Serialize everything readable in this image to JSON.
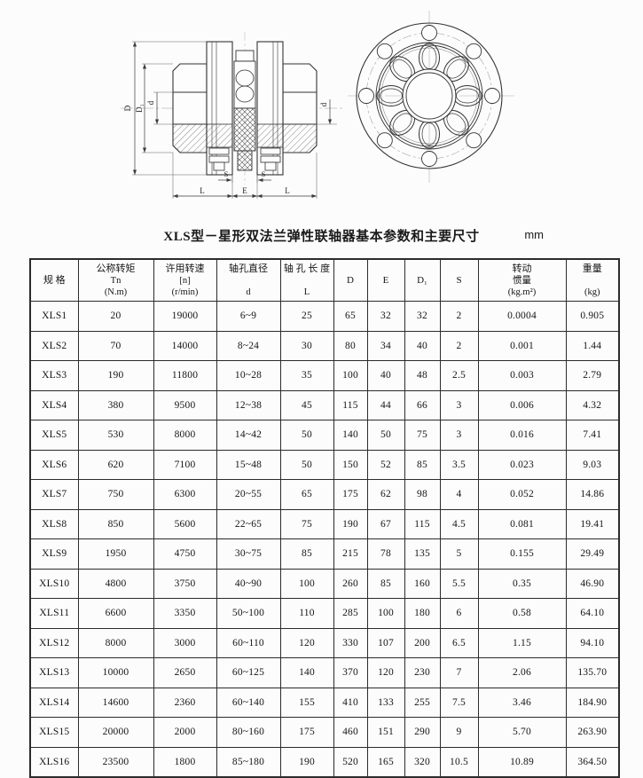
{
  "title": "XLS型－星形双法兰弹性联轴器基本参数和主要尺寸",
  "unit": "mm",
  "drawing": {
    "section_view": {
      "dims": {
        "D": "D",
        "D1": "D₁",
        "d_left": "d",
        "d_right": "d",
        "s_left": "S",
        "s_right": "S",
        "l_left": "L",
        "e": "E",
        "l_right": "L"
      }
    }
  },
  "table": {
    "columns": [
      {
        "key": "spec",
        "lines": [
          "规  格"
        ]
      },
      {
        "key": "torque",
        "lines": [
          "公称转矩",
          "Tn",
          "(N.m)"
        ]
      },
      {
        "key": "speed",
        "lines": [
          "许用转速",
          "[n]",
          "(r/min)"
        ]
      },
      {
        "key": "bore_d",
        "lines": [
          "轴孔直径",
          "",
          "d"
        ]
      },
      {
        "key": "bore_l",
        "lines": [
          "轴 孔 长 度",
          "",
          "L"
        ]
      },
      {
        "key": "D",
        "lines": [
          "D"
        ]
      },
      {
        "key": "E",
        "lines": [
          "E"
        ]
      },
      {
        "key": "D1",
        "lines": [
          "D₁"
        ]
      },
      {
        "key": "S",
        "lines": [
          "S"
        ]
      },
      {
        "key": "inertia",
        "lines": [
          "转动",
          "惯量",
          "(kg.m²)"
        ]
      },
      {
        "key": "weight",
        "lines": [
          "重量",
          "",
          "(kg)"
        ]
      }
    ],
    "rows": [
      [
        "XLS1",
        "20",
        "19000",
        "6~9",
        "25",
        "65",
        "32",
        "32",
        "2",
        "0.0004",
        "0.905"
      ],
      [
        "XLS2",
        "70",
        "14000",
        "8~24",
        "30",
        "80",
        "34",
        "40",
        "2",
        "0.001",
        "1.44"
      ],
      [
        "XLS3",
        "190",
        "11800",
        "10~28",
        "35",
        "100",
        "40",
        "48",
        "2.5",
        "0.003",
        "2.79"
      ],
      [
        "XLS4",
        "380",
        "9500",
        "12~38",
        "45",
        "115",
        "44",
        "66",
        "3",
        "0.006",
        "4.32"
      ],
      [
        "XLS5",
        "530",
        "8000",
        "14~42",
        "50",
        "140",
        "50",
        "75",
        "3",
        "0.016",
        "7.41"
      ],
      [
        "XLS6",
        "620",
        "7100",
        "15~48",
        "50",
        "150",
        "52",
        "85",
        "3.5",
        "0.023",
        "9.03"
      ],
      [
        "XLS7",
        "750",
        "6300",
        "20~55",
        "65",
        "175",
        "62",
        "98",
        "4",
        "0.052",
        "14.86"
      ],
      [
        "XLS8",
        "850",
        "5600",
        "22~65",
        "75",
        "190",
        "67",
        "115",
        "4.5",
        "0.081",
        "19.41"
      ],
      [
        "XLS9",
        "1950",
        "4750",
        "30~75",
        "85",
        "215",
        "78",
        "135",
        "5",
        "0.155",
        "29.49"
      ],
      [
        "XLS10",
        "4800",
        "3750",
        "40~90",
        "100",
        "260",
        "85",
        "160",
        "5.5",
        "0.35",
        "46.90"
      ],
      [
        "XLS11",
        "6600",
        "3350",
        "50~100",
        "110",
        "285",
        "100",
        "180",
        "6",
        "0.58",
        "64.10"
      ],
      [
        "XLS12",
        "8000",
        "3000",
        "60~110",
        "120",
        "330",
        "107",
        "200",
        "6.5",
        "1.15",
        "94.10"
      ],
      [
        "XLS13",
        "10000",
        "2650",
        "60~125",
        "140",
        "370",
        "120",
        "230",
        "7",
        "2.06",
        "135.70"
      ],
      [
        "XLS14",
        "14600",
        "2360",
        "60~140",
        "155",
        "410",
        "133",
        "255",
        "7.5",
        "3.46",
        "184.90"
      ],
      [
        "XLS15",
        "20000",
        "2000",
        "80~160",
        "175",
        "460",
        "151",
        "290",
        "9",
        "5.70",
        "263.90"
      ],
      [
        "XLS16",
        "23500",
        "1800",
        "85~180",
        "190",
        "520",
        "165",
        "320",
        "10.5",
        "10.89",
        "364.50"
      ]
    ]
  }
}
